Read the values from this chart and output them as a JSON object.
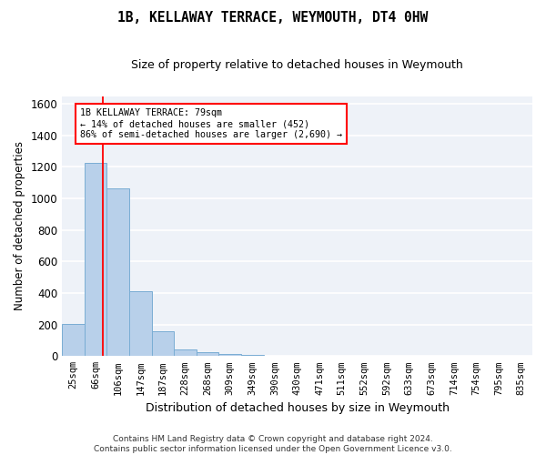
{
  "title": "1B, KELLAWAY TERRACE, WEYMOUTH, DT4 0HW",
  "subtitle": "Size of property relative to detached houses in Weymouth",
  "xlabel": "Distribution of detached houses by size in Weymouth",
  "ylabel": "Number of detached properties",
  "categories": [
    "25sqm",
    "66sqm",
    "106sqm",
    "147sqm",
    "187sqm",
    "228sqm",
    "268sqm",
    "309sqm",
    "349sqm",
    "390sqm",
    "430sqm",
    "471sqm",
    "511sqm",
    "552sqm",
    "592sqm",
    "633sqm",
    "673sqm",
    "714sqm",
    "754sqm",
    "795sqm",
    "835sqm"
  ],
  "values": [
    205,
    1225,
    1065,
    410,
    160,
    45,
    25,
    15,
    10,
    0,
    0,
    0,
    0,
    0,
    0,
    0,
    0,
    0,
    0,
    0,
    0
  ],
  "bar_color": "#b8d0ea",
  "bar_edge_color": "#7aadd4",
  "ylim": [
    0,
    1650
  ],
  "yticks": [
    0,
    200,
    400,
    600,
    800,
    1000,
    1200,
    1400,
    1600
  ],
  "annotation_text": "1B KELLAWAY TERRACE: 79sqm\n← 14% of detached houses are smaller (452)\n86% of semi-detached houses are larger (2,690) →",
  "annotation_box_color": "white",
  "annotation_box_edge_color": "red",
  "vline_color": "red",
  "bg_color": "#eef2f8",
  "grid_color": "white",
  "footer_line1": "Contains HM Land Registry data © Crown copyright and database right 2024.",
  "footer_line2": "Contains public sector information licensed under the Open Government Licence v3.0."
}
